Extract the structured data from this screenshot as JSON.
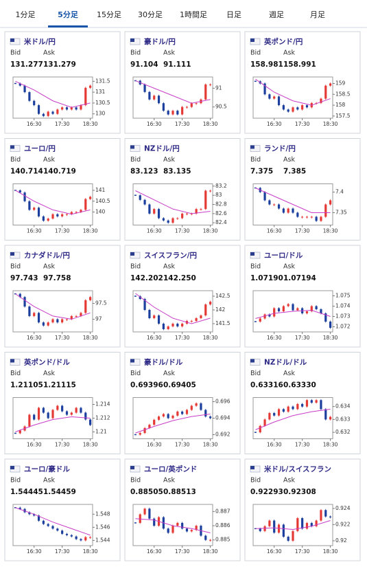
{
  "tabs": [
    "1分足",
    "5分足",
    "15分足",
    "30分足",
    "1時間足",
    "日足",
    "週足",
    "月足"
  ],
  "chart_style": {
    "up_color": "#e53935",
    "down_color": "#1c3f9e",
    "ma_color": "#c83cc8"
  },
  "cards": [
    {
      "title": "米ドル/円",
      "bid_label": "Bid",
      "ask_label": "Ask",
      "bid": "131.277",
      "ask": "131.279",
      "chart": {
        "type": "candlestick",
        "xlim": [
          -0.5,
          16.5
        ],
        "xticks": [
          {
            "value": 4,
            "label": "16:30"
          },
          {
            "value": 10,
            "label": "17:30"
          },
          {
            "value": 16,
            "label": "18:30"
          }
        ],
        "ylim": [
          129.8,
          131.7
        ],
        "yticks": [
          130,
          130.5,
          131,
          131.5
        ],
        "values": [
          131.4,
          131.3,
          131.0,
          130.6,
          130.4,
          130.0,
          129.9,
          130.1,
          130.0,
          130.2,
          130.3,
          130.2,
          130.3,
          130.2,
          130.4,
          131.2,
          131.3
        ],
        "ma_x": [
          0,
          4,
          8,
          12,
          16
        ],
        "ma": [
          131.5,
          131.1,
          130.6,
          130.3,
          130.5
        ]
      }
    },
    {
      "title": "豪ドル/円",
      "bid_label": "Bid",
      "ask_label": "Ask",
      "bid": "91.104",
      "ask": "91.111",
      "chart": {
        "type": "candlestick",
        "xlim": [
          -0.5,
          16.5
        ],
        "xticks": [
          {
            "value": 4,
            "label": "16:30"
          },
          {
            "value": 10,
            "label": "17:30"
          },
          {
            "value": 16,
            "label": "18:30"
          }
        ],
        "ylim": [
          90.2,
          91.3
        ],
        "yticks": [
          90.5,
          91
        ],
        "values": [
          91.2,
          91.1,
          90.9,
          90.7,
          90.8,
          90.6,
          90.4,
          90.3,
          90.4,
          90.3,
          90.5,
          90.5,
          90.6,
          90.6,
          90.7,
          91.1,
          91.1
        ],
        "ma_x": [
          0,
          4,
          8,
          12,
          16
        ],
        "ma": [
          91.2,
          91.0,
          90.8,
          90.6,
          90.7
        ]
      }
    },
    {
      "title": "英ポンド/円",
      "bid_label": "Bid",
      "ask_label": "Ask",
      "bid": "158.981",
      "ask": "158.991",
      "chart": {
        "type": "candlestick",
        "xlim": [
          -0.5,
          16.5
        ],
        "xticks": [
          {
            "value": 4,
            "label": "16:30"
          },
          {
            "value": 10,
            "label": "17:30"
          },
          {
            "value": 16,
            "label": "18:30"
          }
        ],
        "ylim": [
          157.4,
          159.3
        ],
        "yticks": [
          157.5,
          158,
          158.5,
          159
        ],
        "values": [
          159.1,
          159.0,
          158.5,
          158.3,
          158.4,
          158.0,
          157.8,
          157.7,
          157.9,
          157.8,
          158.0,
          157.9,
          158.1,
          158.1,
          158.3,
          158.9,
          159.0
        ],
        "ma_x": [
          0,
          4,
          8,
          12,
          16
        ],
        "ma": [
          159.2,
          158.6,
          158.2,
          158.0,
          158.3
        ]
      }
    },
    {
      "title": "ユーロ/円",
      "bid_label": "Bid",
      "ask_label": "Ask",
      "bid": "140.714",
      "ask": "140.719",
      "chart": {
        "type": "candlestick",
        "xlim": [
          -0.5,
          16.5
        ],
        "xticks": [
          {
            "value": 4,
            "label": "16:30"
          },
          {
            "value": 10,
            "label": "17:30"
          },
          {
            "value": 16,
            "label": "18:30"
          }
        ],
        "ylim": [
          139.4,
          141.3
        ],
        "yticks": [
          140,
          140.5,
          141
        ],
        "values": [
          141.0,
          140.9,
          140.5,
          140.1,
          140.2,
          139.8,
          139.6,
          139.7,
          139.9,
          139.8,
          139.9,
          139.9,
          140.0,
          140.0,
          140.1,
          140.6,
          140.7
        ],
        "ma_x": [
          0,
          4,
          8,
          12,
          16
        ],
        "ma": [
          141.0,
          140.5,
          140.1,
          139.9,
          140.1
        ]
      }
    },
    {
      "title": "NZドル/円",
      "bid_label": "Bid",
      "ask_label": "Ask",
      "bid": "83.123",
      "ask": "83.135",
      "chart": {
        "type": "candlestick",
        "xlim": [
          -0.5,
          16.5
        ],
        "xticks": [
          {
            "value": 4,
            "label": "16:30"
          },
          {
            "value": 10,
            "label": "17:30"
          },
          {
            "value": 16,
            "label": "18:30"
          }
        ],
        "ylim": [
          82.35,
          83.25
        ],
        "yticks": [
          82.4,
          82.6,
          82.8,
          83,
          83.2
        ],
        "values": [
          83.0,
          82.9,
          82.8,
          82.6,
          82.7,
          82.5,
          82.45,
          82.4,
          82.5,
          82.5,
          82.6,
          82.6,
          82.6,
          82.7,
          82.7,
          83.1,
          83.1
        ],
        "ma_x": [
          0,
          4,
          8,
          12,
          16
        ],
        "ma": [
          83.1,
          82.9,
          82.7,
          82.6,
          82.65
        ]
      }
    },
    {
      "title": "ランド/円",
      "bid_label": "Bid",
      "ask_label": "Ask",
      "bid": "7.375",
      "ask": "7.385",
      "chart": {
        "type": "candlestick",
        "xlim": [
          -0.5,
          16.5
        ],
        "xticks": [
          {
            "value": 4,
            "label": "16:30"
          },
          {
            "value": 10,
            "label": "17:30"
          },
          {
            "value": 16,
            "label": "18:30"
          }
        ],
        "ylim": [
          7.32,
          7.42
        ],
        "yticks": [
          7.35,
          7.4
        ],
        "values": [
          7.41,
          7.4,
          7.38,
          7.37,
          7.37,
          7.36,
          7.35,
          7.36,
          7.35,
          7.34,
          7.34,
          7.34,
          7.34,
          7.33,
          7.34,
          7.37,
          7.38
        ],
        "ma_x": [
          0,
          4,
          8,
          12,
          16
        ],
        "ma": [
          7.41,
          7.39,
          7.37,
          7.35,
          7.35
        ]
      }
    },
    {
      "title": "カナダドル/円",
      "bid_label": "Bid",
      "ask_label": "Ask",
      "bid": "97.743",
      "ask": "97.758",
      "chart": {
        "type": "candlestick",
        "xlim": [
          -0.5,
          16.5
        ],
        "xticks": [
          {
            "value": 4,
            "label": "16:30"
          },
          {
            "value": 10,
            "label": "17:30"
          },
          {
            "value": 16,
            "label": "18:30"
          }
        ],
        "ylim": [
          96.6,
          97.9
        ],
        "yticks": [
          97,
          97.5
        ],
        "values": [
          97.8,
          97.7,
          97.4,
          97.1,
          97.2,
          96.9,
          96.8,
          96.9,
          97.0,
          96.9,
          97.0,
          97.0,
          97.1,
          97.1,
          97.2,
          97.6,
          97.7
        ],
        "ma_x": [
          0,
          4,
          8,
          12,
          16
        ],
        "ma": [
          97.8,
          97.4,
          97.1,
          97.0,
          97.2
        ]
      }
    },
    {
      "title": "スイスフラン/円",
      "bid_label": "Bid",
      "ask_label": "Ask",
      "bid": "142.202",
      "ask": "142.250",
      "chart": {
        "type": "candlestick",
        "xlim": [
          -0.5,
          16.5
        ],
        "xticks": [
          {
            "value": 4,
            "label": "16:30"
          },
          {
            "value": 10,
            "label": "17:30"
          },
          {
            "value": 16,
            "label": "18:30"
          }
        ],
        "ylim": [
          141.2,
          142.7
        ],
        "yticks": [
          141.5,
          142,
          142.5
        ],
        "values": [
          142.5,
          142.4,
          142.0,
          141.7,
          141.8,
          141.5,
          141.3,
          141.4,
          141.5,
          141.4,
          141.5,
          141.6,
          141.6,
          141.7,
          141.8,
          142.2,
          142.3
        ],
        "ma_x": [
          0,
          4,
          8,
          12,
          16
        ],
        "ma": [
          142.6,
          142.1,
          141.7,
          141.5,
          141.7
        ]
      }
    },
    {
      "title": "ユーロ/ドル",
      "bid_label": "Bid",
      "ask_label": "Ask",
      "bid": "1.07190",
      "ask": "1.07194",
      "chart": {
        "type": "candlestick",
        "xlim": [
          -0.5,
          16.5
        ],
        "xticks": [
          {
            "value": 4,
            "label": "16:30"
          },
          {
            "value": 10,
            "label": "17:30"
          },
          {
            "value": 16,
            "label": "18:30"
          }
        ],
        "ylim": [
          1.0715,
          1.0755
        ],
        "yticks": [
          1.072,
          1.073,
          1.074,
          1.075
        ],
        "values": [
          1.0725,
          1.0728,
          1.0732,
          1.073,
          1.0738,
          1.0735,
          1.074,
          1.0742,
          1.0736,
          1.0738,
          1.0733,
          1.0735,
          1.074,
          1.0737,
          1.0733,
          1.0725,
          1.0719
        ],
        "ma_x": [
          0,
          4,
          8,
          12,
          16
        ],
        "ma": [
          1.0728,
          1.0733,
          1.0735,
          1.0736,
          1.073
        ]
      }
    },
    {
      "title": "英ポンド/ドル",
      "bid_label": "Bid",
      "ask_label": "Ask",
      "bid": "1.21105",
      "ask": "1.21115",
      "chart": {
        "type": "candlestick",
        "xlim": [
          -0.5,
          16.5
        ],
        "xticks": [
          {
            "value": 4,
            "label": "16:30"
          },
          {
            "value": 10,
            "label": "17:30"
          },
          {
            "value": 16,
            "label": "18:30"
          }
        ],
        "ylim": [
          1.209,
          1.215
        ],
        "yticks": [
          1.21,
          1.212,
          1.214
        ],
        "values": [
          1.2098,
          1.2102,
          1.2108,
          1.2125,
          1.2118,
          1.2135,
          1.2128,
          1.212,
          1.2132,
          1.2138,
          1.213,
          1.2125,
          1.2128,
          1.2135,
          1.2128,
          1.2118,
          1.211
        ],
        "ma_x": [
          0,
          4,
          8,
          12,
          16
        ],
        "ma": [
          1.21,
          1.211,
          1.2118,
          1.2122,
          1.212
        ]
      }
    },
    {
      "title": "豪ドル/ドル",
      "bid_label": "Bid",
      "ask_label": "Ask",
      "bid": "0.69396",
      "ask": "0.69405",
      "chart": {
        "type": "candlestick",
        "xlim": [
          -0.5,
          16.5
        ],
        "xticks": [
          {
            "value": 4,
            "label": "16:30"
          },
          {
            "value": 10,
            "label": "17:30"
          },
          {
            "value": 16,
            "label": "18:30"
          }
        ],
        "ylim": [
          0.6915,
          0.6965
        ],
        "yticks": [
          0.692,
          0.694,
          0.696
        ],
        "values": [
          0.692,
          0.6922,
          0.6928,
          0.6932,
          0.6938,
          0.6942,
          0.6945,
          0.694,
          0.6943,
          0.6948,
          0.6945,
          0.695,
          0.6955,
          0.6958,
          0.695,
          0.6942,
          0.694
        ],
        "ma_x": [
          0,
          4,
          8,
          12,
          16
        ],
        "ma": [
          0.6922,
          0.693,
          0.6937,
          0.6942,
          0.6945
        ]
      }
    },
    {
      "title": "NZドル/ドル",
      "bid_label": "Bid",
      "ask_label": "Ask",
      "bid": "0.63316",
      "ask": "0.63330",
      "chart": {
        "type": "candlestick",
        "xlim": [
          -0.5,
          16.5
        ],
        "xticks": [
          {
            "value": 4,
            "label": "16:30"
          },
          {
            "value": 10,
            "label": "17:30"
          },
          {
            "value": 16,
            "label": "18:30"
          }
        ],
        "ylim": [
          0.6315,
          0.6347
        ],
        "yticks": [
          0.632,
          0.633,
          0.634
        ],
        "values": [
          0.632,
          0.6325,
          0.633,
          0.6335,
          0.6333,
          0.6338,
          0.6336,
          0.634,
          0.6338,
          0.6342,
          0.634,
          0.6345,
          0.6343,
          0.6345,
          0.6338,
          0.633,
          0.6332
        ],
        "ma_x": [
          0,
          4,
          8,
          12,
          16
        ],
        "ma": [
          0.6322,
          0.6328,
          0.6333,
          0.6336,
          0.6338
        ]
      }
    },
    {
      "title": "ユーロ/豪ドル",
      "bid_label": "Bid",
      "ask_label": "Ask",
      "bid": "1.54445",
      "ask": "1.54459",
      "chart": {
        "type": "candlestick",
        "xlim": [
          -0.5,
          16.5
        ],
        "xticks": [
          {
            "value": 4,
            "label": "16:30"
          },
          {
            "value": 10,
            "label": "17:30"
          },
          {
            "value": 16,
            "label": "18:30"
          }
        ],
        "ylim": [
          1.5432,
          1.5495
        ],
        "yticks": [
          1.544,
          1.546,
          1.548
        ],
        "values": [
          1.549,
          1.5488,
          1.5483,
          1.548,
          1.5478,
          1.547,
          1.5465,
          1.5462,
          1.5458,
          1.5455,
          1.545,
          1.5448,
          1.5446,
          1.5442,
          1.544,
          1.5445,
          1.5445
        ],
        "ma_x": [
          0,
          4,
          8,
          12,
          16
        ],
        "ma": [
          1.549,
          1.548,
          1.5468,
          1.5458,
          1.5448
        ]
      }
    },
    {
      "title": "ユーロ/英ポンド",
      "bid_label": "Bid",
      "ask_label": "Ask",
      "bid": "0.88505",
      "ask": "0.88513",
      "chart": {
        "type": "candlestick",
        "xlim": [
          -0.5,
          16.5
        ],
        "xticks": [
          {
            "value": 4,
            "label": "16:30"
          },
          {
            "value": 10,
            "label": "17:30"
          },
          {
            "value": 16,
            "label": "18:30"
          }
        ],
        "ylim": [
          0.8846,
          0.8875
        ],
        "yticks": [
          0.885,
          0.886,
          0.887
        ],
        "values": [
          0.8862,
          0.8868,
          0.8872,
          0.8865,
          0.886,
          0.8866,
          0.8858,
          0.8855,
          0.886,
          0.8862,
          0.8858,
          0.8856,
          0.8857,
          0.886,
          0.8853,
          0.885,
          0.885
        ],
        "ma_x": [
          0,
          4,
          8,
          12,
          16
        ],
        "ma": [
          0.8865,
          0.8864,
          0.886,
          0.8858,
          0.8855
        ]
      }
    },
    {
      "title": "米ドル/スイスフラン",
      "bid_label": "Bid",
      "ask_label": "Ask",
      "bid": "0.92293",
      "ask": "0.92308",
      "chart": {
        "type": "candlestick",
        "xlim": [
          -0.5,
          16.5
        ],
        "xticks": [
          {
            "value": 4,
            "label": "16:30"
          },
          {
            "value": 10,
            "label": "17:30"
          },
          {
            "value": 16,
            "label": "18:30"
          }
        ],
        "ylim": [
          0.9194,
          0.9245
        ],
        "yticks": [
          0.92,
          0.922,
          0.924
        ],
        "values": [
          0.9215,
          0.9212,
          0.9218,
          0.9225,
          0.921,
          0.922,
          0.9205,
          0.92,
          0.9212,
          0.9228,
          0.9215,
          0.9222,
          0.9218,
          0.9225,
          0.9238,
          0.923,
          0.9229
        ],
        "ma_x": [
          0,
          4,
          8,
          12,
          16
        ],
        "ma": [
          0.9215,
          0.9216,
          0.9214,
          0.9218,
          0.9225
        ]
      }
    }
  ]
}
